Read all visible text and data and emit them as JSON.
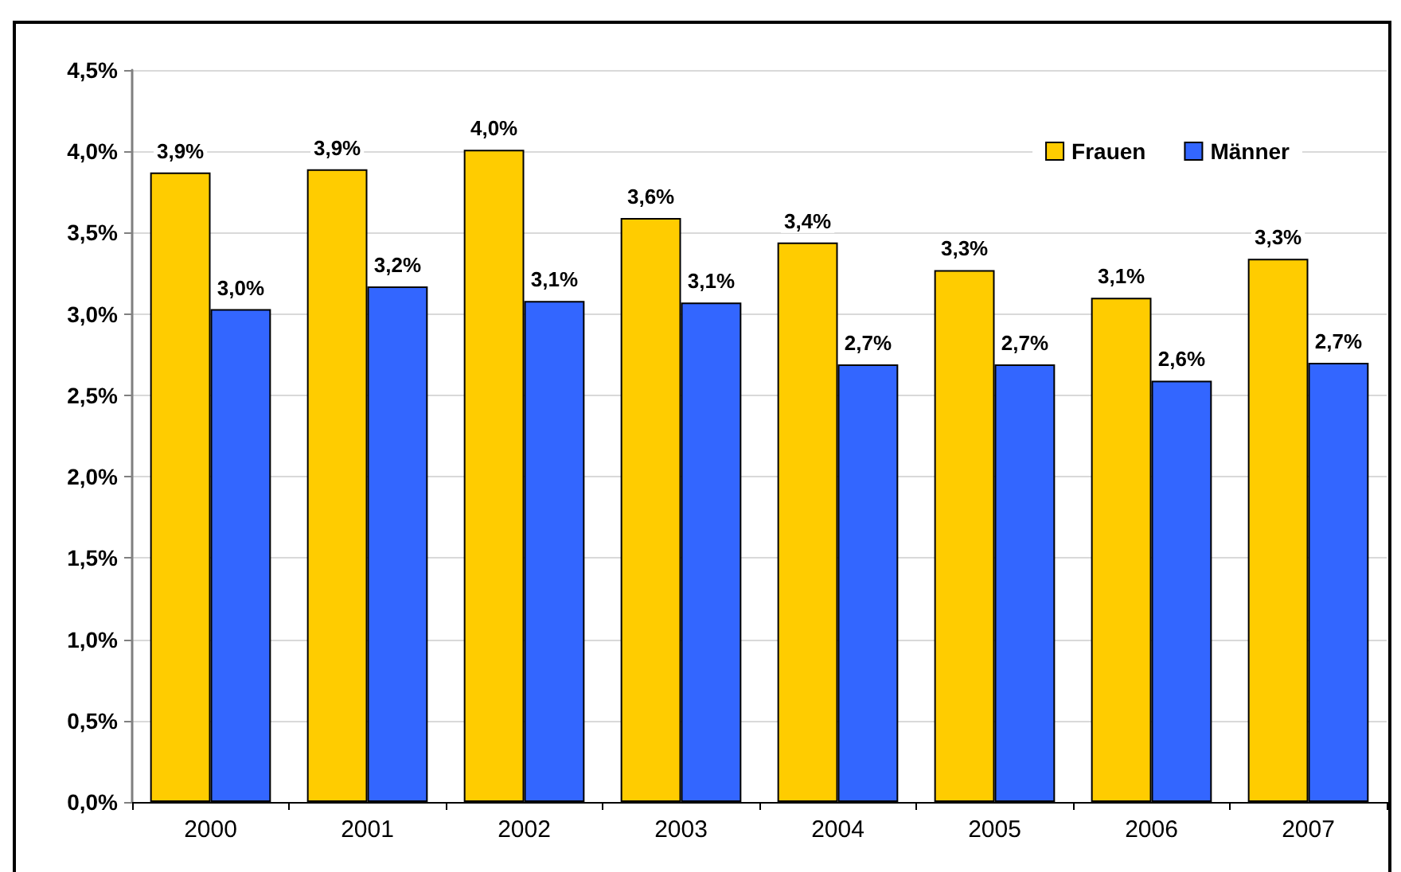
{
  "chart_data": {
    "type": "bar",
    "categories": [
      "2000",
      "2001",
      "2002",
      "2003",
      "2004",
      "2005",
      "2006",
      "2007"
    ],
    "series": [
      {
        "name": "Frauen",
        "color": "#ffcc00",
        "values": [
          3.87,
          3.89,
          4.01,
          3.59,
          3.44,
          3.27,
          3.1,
          3.34
        ],
        "value_labels": [
          "3,9%",
          "3,9%",
          "4,0%",
          "3,6%",
          "3,4%",
          "3,3%",
          "3,1%",
          "3,3%"
        ]
      },
      {
        "name": "Männer",
        "color": "#3366ff",
        "values": [
          3.03,
          3.17,
          3.08,
          3.07,
          2.69,
          2.69,
          2.59,
          2.7
        ],
        "value_labels": [
          "3,0%",
          "3,2%",
          "3,1%",
          "3,1%",
          "2,7%",
          "2,7%",
          "2,6%",
          "2,7%"
        ]
      }
    ],
    "ylim": [
      0,
      4.5
    ],
    "yticks": [
      {
        "value": 0,
        "label": "0,0%"
      },
      {
        "value": 0.5,
        "label": "0,5%"
      },
      {
        "value": 1,
        "label": "1,0%"
      },
      {
        "value": 1.5,
        "label": "1,5%"
      },
      {
        "value": 2,
        "label": "2,0%"
      },
      {
        "value": 2.5,
        "label": "2,5%"
      },
      {
        "value": 3,
        "label": "3,0%"
      },
      {
        "value": 3.5,
        "label": "3,5%"
      },
      {
        "value": 4,
        "label": "4,0%"
      },
      {
        "value": 4.5,
        "label": "4,5%"
      }
    ],
    "grid": "y",
    "legend": "top right"
  }
}
